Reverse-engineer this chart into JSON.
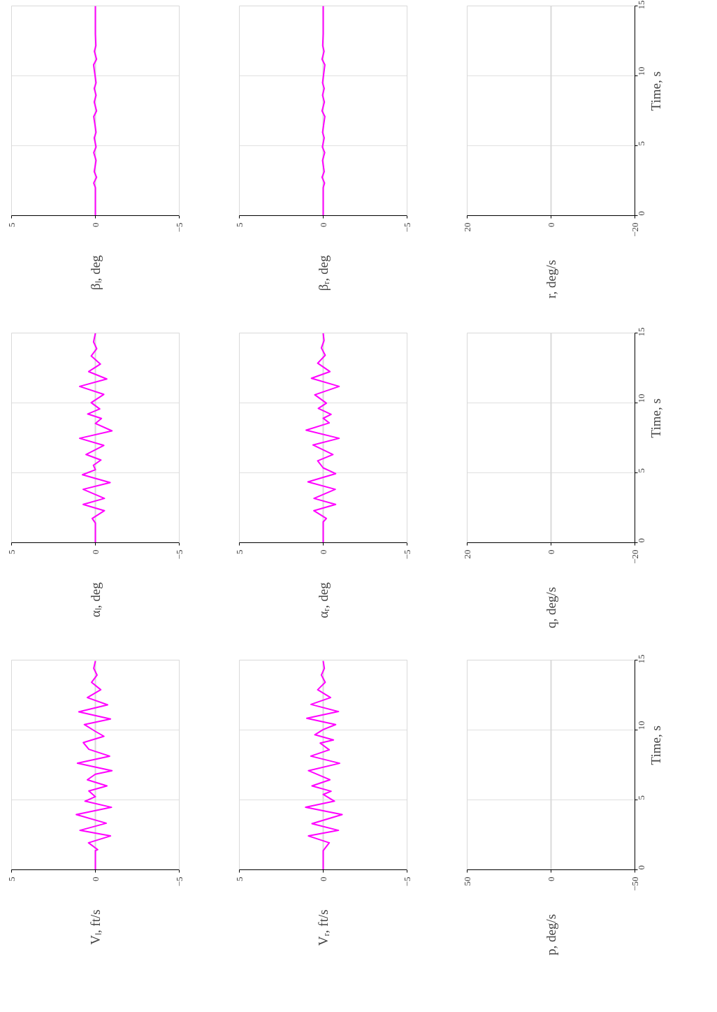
{
  "chart_data": [
    {
      "type": "line",
      "annotations": [
        "Vₗ, ft/s"
      ],
      "ylim": [
        0,
        15
      ],
      "xlim": [
        5,
        -5
      ],
      "yticks": [
        0,
        5,
        10,
        15
      ],
      "xticks": [
        {
          "value": -5,
          "label": "−5"
        },
        0,
        5
      ],
      "tick_labels": "x",
      "grid": "y",
      "series": [
        {
          "color": "#d9d9d9",
          "values": [
            0,
            15
          ],
          "x": [
            0,
            0
          ]
        },
        {
          "color": "#ff00ff",
          "values": [
            0,
            1.37,
            1.44,
            1.93,
            2.42,
            2.82,
            3.33,
            3.95,
            4.47,
            4.91,
            5.23,
            5.64,
            6.0,
            6.44,
            6.84,
            7.09,
            7.62,
            8.13,
            8.62,
            9.1,
            9.55,
            9.9,
            10.39,
            10.79,
            11.3,
            11.8,
            12.32,
            12.88,
            13.41,
            13.93,
            14.41,
            14.93
          ],
          "x": [
            0,
            0,
            -0.14,
            0.41,
            -0.9,
            0.92,
            -0.65,
            1.14,
            -0.96,
            0.62,
            0,
            0.39,
            -0.69,
            0.48,
            0,
            -0.99,
            1.07,
            -0.85,
            0.39,
            0.72,
            -0.51,
            0,
            0.66,
            -0.9,
            0.99,
            -0.73,
            0.48,
            -0.32,
            0.23,
            -0.1,
            0.1,
            0
          ]
        }
      ]
    },
    {
      "type": "line",
      "annotations": [
        "αₗ, deg"
      ],
      "ylim": [
        0,
        15
      ],
      "xlim": [
        5,
        -5
      ],
      "yticks": [
        0,
        5,
        10,
        15
      ],
      "xticks": [
        {
          "value": -5,
          "label": "−5"
        },
        0,
        5
      ],
      "tick_labels": "x",
      "grid": "y",
      "series": [
        {
          "color": "#d9d9d9",
          "values": [
            0,
            15
          ],
          "x": [
            0,
            0
          ]
        },
        {
          "color": "#ff00ff",
          "values": [
            0,
            1.41,
            1.73,
            2.29,
            2.74,
            3.17,
            3.82,
            4.3,
            4.86,
            5.22,
            5.54,
            5.91,
            6.31,
            6.96,
            7.47,
            8.0,
            8.53,
            8.89,
            9.21,
            9.57,
            10.02,
            10.61,
            11.18,
            11.71,
            12.24,
            12.78,
            13.36,
            13.88,
            14.36,
            14.98
          ],
          "x": [
            0,
            0,
            0.19,
            -0.54,
            0.73,
            -0.54,
            0.73,
            -0.88,
            0.77,
            0,
            0.12,
            -0.33,
            0.56,
            -0.5,
            0.94,
            -0.99,
            0,
            -0.36,
            0.46,
            -0.26,
            0.25,
            -0.5,
            0.94,
            -0.68,
            0.4,
            -0.3,
            0.25,
            -0.08,
            0.11,
            0
          ]
        }
      ]
    },
    {
      "type": "line",
      "annotations": [
        "βₗ, deg"
      ],
      "ylim": [
        0,
        15
      ],
      "xlim": [
        5,
        -5
      ],
      "yticks": [
        0,
        5,
        10,
        15
      ],
      "xticks": [
        {
          "value": -5,
          "label": "−5"
        },
        0,
        5
      ],
      "tick_labels": "x",
      "grid": "y",
      "series": [
        {
          "color": "#d9d9d9",
          "values": [
            0,
            15
          ],
          "x": [
            0,
            0
          ]
        },
        {
          "color": "#ff00ff",
          "values": [
            0,
            2.0,
            2.33,
            2.74,
            3.14,
            3.95,
            4.51,
            4.91,
            5.56,
            5.96,
            7.09,
            7.49,
            8.13,
            8.61,
            9.1,
            9.5,
            10.79,
            11.19,
            11.75,
            12.16,
            13.0,
            15
          ],
          "x": [
            0,
            0,
            0.1,
            -0.07,
            0.07,
            -0.04,
            0.1,
            -0.04,
            0.07,
            -0.04,
            0.1,
            -0.07,
            0.07,
            -0.04,
            0.07,
            -0.04,
            0.11,
            -0.07,
            0.06,
            -0.03,
            0,
            0
          ]
        }
      ]
    },
    {
      "type": "line",
      "annotations": [
        "Vᵣ, ft/s"
      ],
      "ylim": [
        0,
        15
      ],
      "xlim": [
        5,
        -5
      ],
      "yticks": [
        0,
        5,
        10,
        15
      ],
      "xticks": [
        {
          "value": -5,
          "label": "−5"
        },
        0,
        5
      ],
      "tick_labels": "x",
      "grid": "y",
      "series": [
        {
          "color": "#d9d9d9",
          "values": [
            0,
            15
          ],
          "x": [
            0,
            0
          ]
        },
        {
          "color": "#ff00ff",
          "values": [
            0,
            1.37,
            1.93,
            2.42,
            2.82,
            3.3,
            3.95,
            4.47,
            4.91,
            5.39,
            5.62,
            6.0,
            6.44,
            7.09,
            7.62,
            8.13,
            8.58,
            9.06,
            9.29,
            9.66,
            10.03,
            10.39,
            10.84,
            11.32,
            11.83,
            12.32,
            12.88,
            13.41,
            13.93,
            14.41,
            14.93
          ],
          "x": [
            0,
            0,
            -0.36,
            0.88,
            -0.91,
            0.67,
            -1.13,
            1.05,
            -0.67,
            0,
            -0.47,
            0.67,
            -0.4,
            0.88,
            -0.98,
            0.74,
            -0.36,
            0.18,
            -0.61,
            0.5,
            0,
            -0.74,
            0.98,
            -0.91,
            0.73,
            -0.44,
            0.33,
            -0.12,
            0.11,
            -0.07,
            0
          ]
        }
      ]
    },
    {
      "type": "line",
      "annotations": [
        "αᵣ, deg"
      ],
      "ylim": [
        0,
        15
      ],
      "xlim": [
        5,
        -5
      ],
      "yticks": [
        0,
        5,
        10,
        15
      ],
      "xticks": [
        {
          "value": -5,
          "label": "−5"
        },
        0,
        5
      ],
      "tick_labels": "x",
      "grid": "y",
      "series": [
        {
          "color": "#d9d9d9",
          "values": [
            0,
            15
          ],
          "x": [
            0,
            0
          ]
        },
        {
          "color": "#ff00ff",
          "values": [
            0,
            1.49,
            1.73,
            2.29,
            2.74,
            3.17,
            3.82,
            4.35,
            4.94,
            5.35,
            5.86,
            6.31,
            6.99,
            7.47,
            8.05,
            8.57,
            8.9,
            9.18,
            9.61,
            9.98,
            10.58,
            11.18,
            11.76,
            12.24,
            12.84,
            13.41,
            13.93,
            14.46,
            14.98
          ],
          "x": [
            0,
            0,
            -0.19,
            0.56,
            -0.74,
            0.55,
            -0.72,
            0.91,
            -0.74,
            0,
            0.33,
            -0.58,
            0.61,
            -0.95,
            1.02,
            -0.36,
            0,
            -0.47,
            0.29,
            -0.19,
            0.5,
            -0.95,
            0.7,
            -0.4,
            0.33,
            -0.12,
            0.11,
            -0.05,
            0
          ]
        }
      ]
    },
    {
      "type": "line",
      "annotations": [
        "βᵣ, deg"
      ],
      "ylim": [
        0,
        15
      ],
      "xlim": [
        5,
        -5
      ],
      "yticks": [
        0,
        5,
        10,
        15
      ],
      "xticks": [
        {
          "value": -5,
          "label": "−5"
        },
        0,
        5
      ],
      "tick_labels": "x",
      "grid": "y",
      "series": [
        {
          "color": "#d9d9d9",
          "values": [
            0,
            15
          ],
          "x": [
            0,
            0
          ]
        },
        {
          "color": "#ff00ff",
          "values": [
            0,
            2.0,
            2.33,
            2.74,
            3.14,
            3.95,
            4.51,
            4.91,
            5.56,
            5.96,
            7.09,
            7.49,
            8.13,
            8.61,
            9.1,
            9.5,
            10.79,
            11.19,
            11.75,
            12.16,
            13.0,
            15
          ],
          "x": [
            0,
            0,
            -0.08,
            0.07,
            -0.06,
            0.04,
            -0.09,
            0.05,
            -0.06,
            0.04,
            -0.1,
            0.07,
            -0.07,
            0.04,
            -0.06,
            0.04,
            -0.1,
            0.07,
            -0.05,
            0.03,
            0,
            0
          ]
        }
      ]
    },
    {
      "type": "line",
      "annotations": [
        "p, deg/s",
        "Time, s"
      ],
      "ylim": [
        0,
        15
      ],
      "xlim": [
        50,
        -50
      ],
      "yticks": [
        0,
        5,
        10,
        15
      ],
      "xticks": [
        {
          "value": -50,
          "label": "−50"
        },
        0,
        50
      ],
      "grid": "y",
      "series": [
        {
          "color": "#d9d9d9",
          "values": [
            0,
            15
          ],
          "x": [
            0,
            0
          ]
        }
      ]
    },
    {
      "type": "line",
      "annotations": [
        "q, deg/s",
        "Time, s"
      ],
      "ylim": [
        0,
        15
      ],
      "xlim": [
        20,
        -20
      ],
      "yticks": [
        0,
        5,
        10,
        15
      ],
      "xticks": [
        {
          "value": -20,
          "label": "−20"
        },
        0,
        20
      ],
      "grid": "y",
      "series": [
        {
          "color": "#d9d9d9",
          "values": [
            0,
            15
          ],
          "x": [
            0,
            0
          ]
        }
      ]
    },
    {
      "type": "line",
      "annotations": [
        "r, deg/s",
        "Time, s"
      ],
      "ylim": [
        0,
        15
      ],
      "xlim": [
        20,
        -20
      ],
      "yticks": [
        0,
        5,
        10,
        15
      ],
      "xticks": [
        {
          "value": -20,
          "label": "−20"
        },
        0,
        20
      ],
      "grid": "y",
      "series": [
        {
          "color": "#d9d9d9",
          "values": [
            0,
            15
          ],
          "x": [
            0,
            0
          ]
        }
      ]
    }
  ]
}
